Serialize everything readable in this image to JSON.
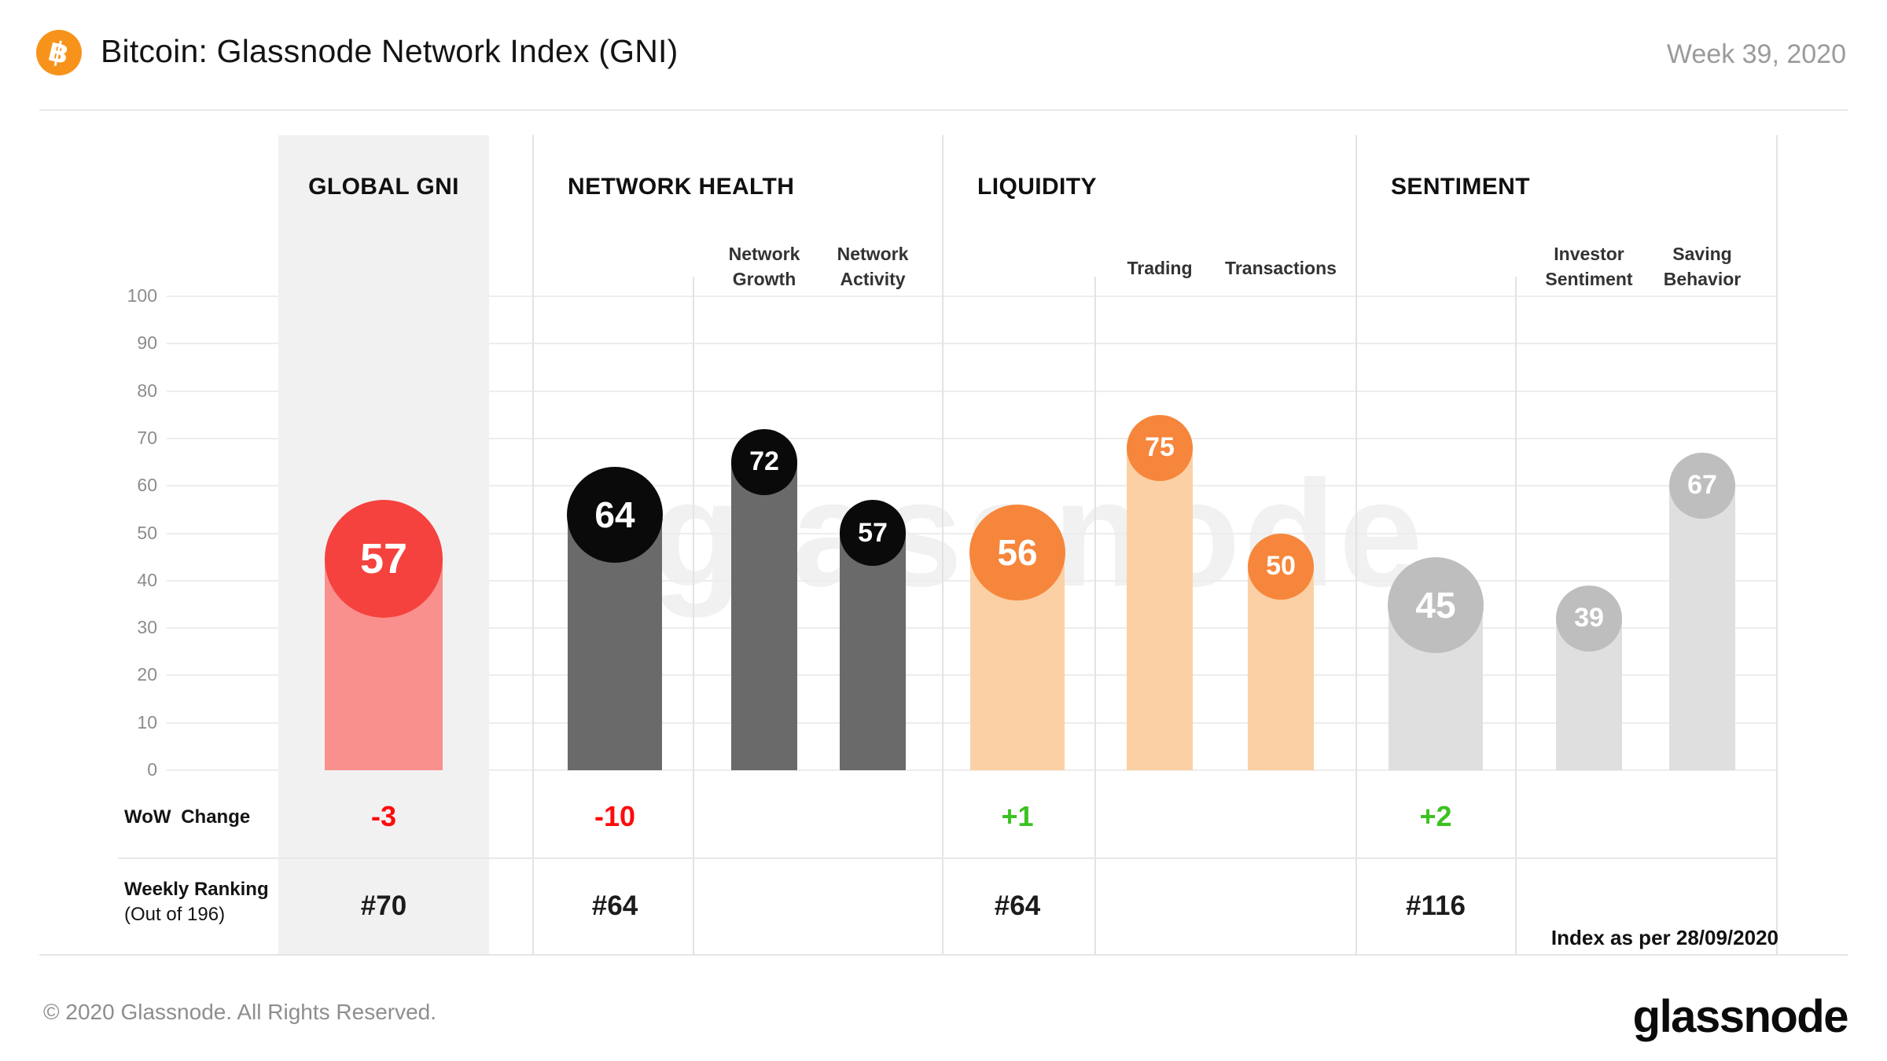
{
  "header": {
    "title": "Bitcoin: Glassnode Network Index (GNI)",
    "week_label": "Week 39, 2020",
    "bitcoin_symbol": "฿"
  },
  "watermark_text": "glassnode",
  "rows": {
    "wow_label": "WoW Change",
    "ranking_label_line1": "Weekly Ranking",
    "ranking_label_line2": "(Out of 196)",
    "index_note": "Index as per 28/09/2020"
  },
  "footer": {
    "copyright": "© 2020 Glassnode. All Rights Reserved.",
    "logo_text": "glassnode"
  },
  "colors": {
    "bitcoin_orange": "#F7931A",
    "wow_negative": "#FF0B0B",
    "wow_positive": "#3CC222",
    "grid": "#EDEDED",
    "highlight_column": "#F1F1F2"
  },
  "chart_data": {
    "type": "bar",
    "title": "Bitcoin: Glassnode Network Index (GNI)",
    "period": "Week 39, 2020",
    "index_date": "28/09/2020",
    "ylim": [
      0,
      100
    ],
    "yticks": [
      100,
      90,
      80,
      70,
      60,
      50,
      40,
      30,
      20,
      10,
      0
    ],
    "grid": true,
    "sections": [
      {
        "name": "GLOBAL GNI",
        "highlighted": true,
        "circle_color": "#F5423E",
        "bar_color": "#F9908D",
        "metrics": [
          {
            "label": "",
            "value": 57,
            "main": true
          }
        ],
        "wow_change": "-3",
        "wow_color": "#FF0B0B",
        "weekly_ranking": "#70"
      },
      {
        "name": "NETWORK HEALTH",
        "highlighted": false,
        "circle_color": "#0A0A0A",
        "bar_color": "#6A6A6A",
        "metrics": [
          {
            "label": "",
            "value": 64,
            "main": true
          },
          {
            "label": "Network Growth",
            "value": 72
          },
          {
            "label": "Network Activity",
            "value": 57
          }
        ],
        "wow_change": "-10",
        "wow_color": "#FF0B0B",
        "weekly_ranking": "#64"
      },
      {
        "name": "LIQUIDITY",
        "highlighted": false,
        "circle_color": "#F6863B",
        "bar_color": "#FCD0A5",
        "metrics": [
          {
            "label": "",
            "value": 56,
            "main": true
          },
          {
            "label": "Trading",
            "value": 75
          },
          {
            "label": "Transactions",
            "value": 50
          }
        ],
        "wow_change": "+1",
        "wow_color": "#3CC222",
        "weekly_ranking": "#64"
      },
      {
        "name": "SENTIMENT",
        "highlighted": false,
        "circle_color": "#BEBEBE",
        "bar_color": "#DFDFDF",
        "metrics": [
          {
            "label": "",
            "value": 45,
            "main": true
          },
          {
            "label": "Investor Sentiment",
            "value": 39
          },
          {
            "label": "Saving Behavior",
            "value": 67
          }
        ],
        "wow_change": "+2",
        "wow_color": "#3CC222",
        "weekly_ranking": "#116"
      }
    ]
  }
}
